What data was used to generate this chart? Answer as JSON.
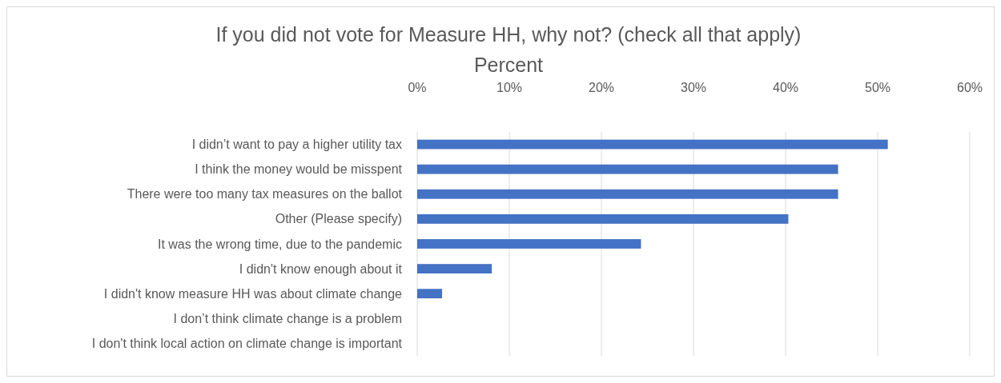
{
  "chart_data": {
    "type": "bar",
    "orientation": "horizontal",
    "title": "If you did not vote for Measure HH, why not?  (check all that apply)",
    "subtitle": "Percent",
    "categories": [
      "I didn’t want to pay a higher utility tax",
      "I think the money would be misspent",
      "There were too many tax measures on the ballot",
      "Other (Please specify)",
      "It was the wrong time, due to the pandemic",
      "I didn't know enough about it",
      "I didn't know measure HH was about climate change",
      "I don’t think climate change is a problem",
      "I don't think local action on climate change is important"
    ],
    "values": [
      51.1,
      45.7,
      45.7,
      40.3,
      24.3,
      8.1,
      2.7,
      0,
      0
    ],
    "color": "#4472c4",
    "xlim": [
      0,
      60
    ],
    "xticks": [
      {
        "value": 0,
        "label": "0%"
      },
      {
        "value": 10,
        "label": "10%"
      },
      {
        "value": 20,
        "label": "20%"
      },
      {
        "value": 30,
        "label": "30%"
      },
      {
        "value": 40,
        "label": "40%"
      },
      {
        "value": 50,
        "label": "50%"
      },
      {
        "value": 60,
        "label": "60%"
      }
    ],
    "grid": "x"
  }
}
